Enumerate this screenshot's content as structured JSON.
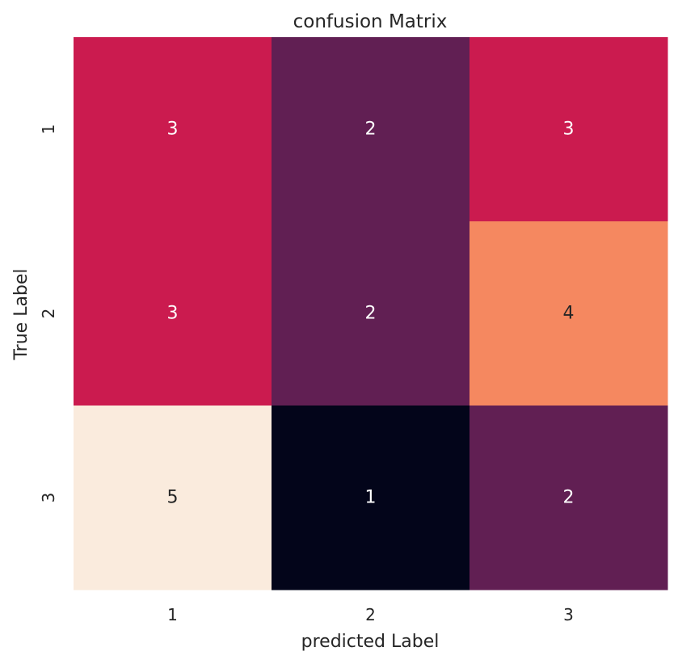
{
  "chart_data": {
    "type": "heatmap",
    "title": "confusion Matrix",
    "xlabel": "predicted Label",
    "ylabel": "True Label",
    "x_categories": [
      "1",
      "2",
      "3"
    ],
    "y_categories": [
      "1",
      "2",
      "3"
    ],
    "values": [
      [
        3,
        2,
        3
      ],
      [
        3,
        2,
        4
      ],
      [
        5,
        1,
        2
      ]
    ],
    "value_range": [
      1,
      5
    ],
    "colorbar": false,
    "grid": false,
    "colormap": "rocket",
    "colors": {
      "1": "#03051a",
      "2": "#611f53",
      "3": "#cb1b4f",
      "4": "#f58860",
      "5": "#faebdd"
    },
    "annotation_colors": {
      "light_text": "#ffffff",
      "dark_text": "#262626"
    }
  }
}
